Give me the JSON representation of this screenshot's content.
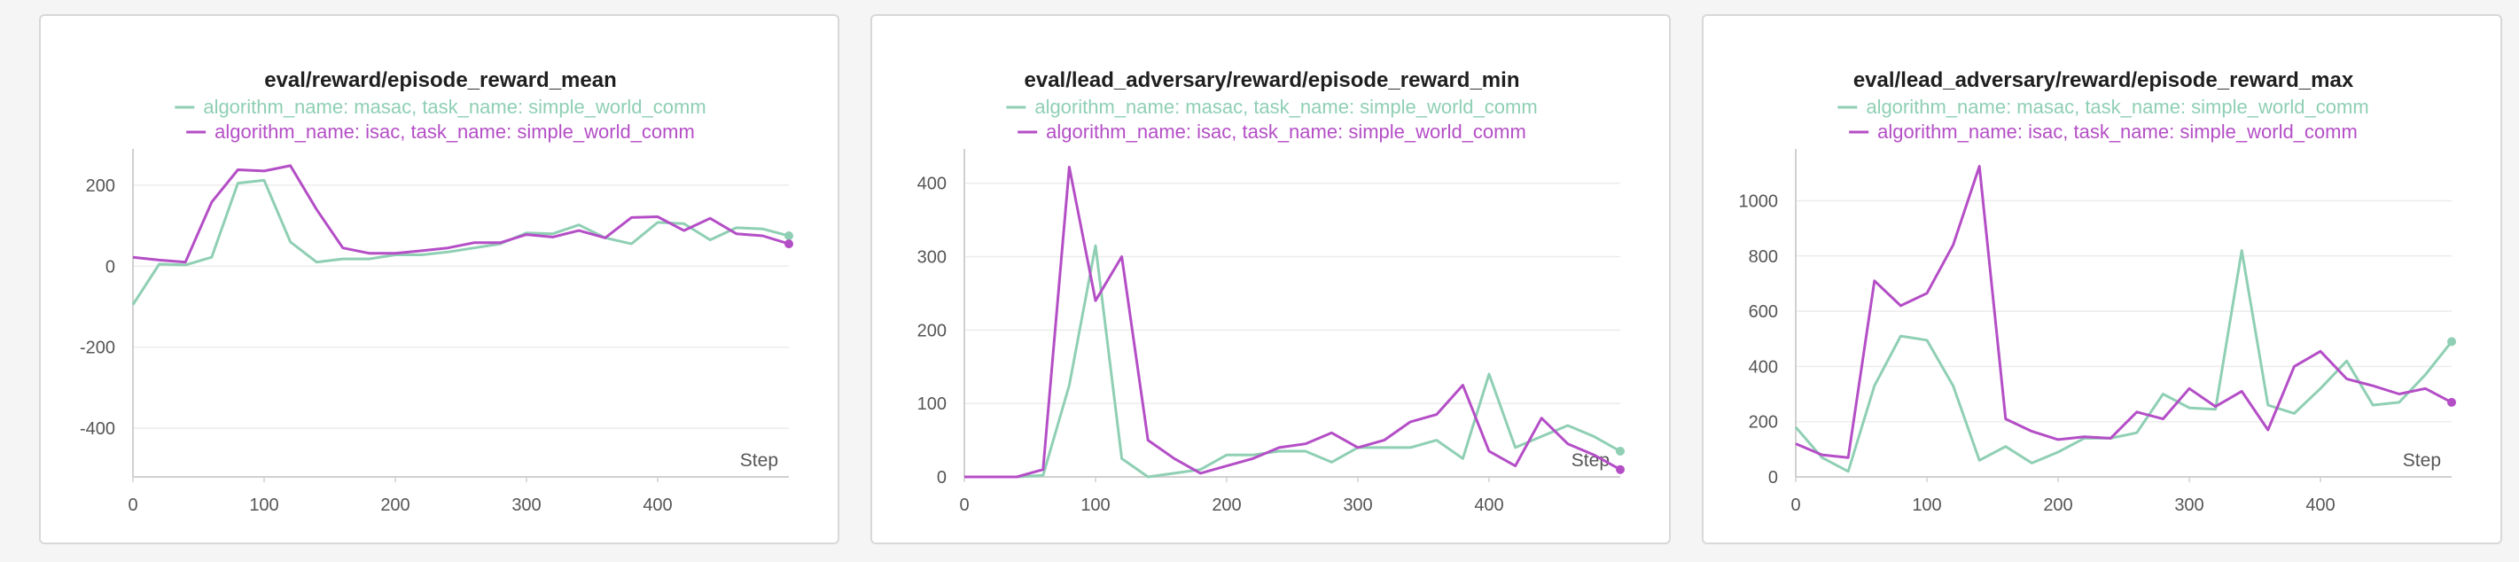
{
  "chart_data": [
    {
      "type": "line",
      "title": "eval/reward/episode_reward_mean",
      "xlabel": "Step",
      "ylabel": "",
      "xlim": [
        0,
        500
      ],
      "ylim": [
        -520,
        250
      ],
      "xticks": [
        0,
        100,
        200,
        300,
        400
      ],
      "yticks": [
        -400,
        -200,
        0,
        200
      ],
      "grid": true,
      "legend": "top-center",
      "series": [
        {
          "name": "algorithm_name: masac, task_name: simple_world_comm",
          "color": "#8fcfb4",
          "x": [
            0,
            20,
            40,
            60,
            80,
            100,
            120,
            140,
            160,
            180,
            200,
            220,
            240,
            260,
            280,
            300,
            320,
            340,
            360,
            380,
            400,
            420,
            440,
            460,
            480,
            500
          ],
          "y": [
            -95,
            5,
            3,
            22,
            205,
            212,
            60,
            10,
            18,
            18,
            28,
            28,
            35,
            45,
            55,
            82,
            80,
            102,
            70,
            55,
            108,
            105,
            65,
            95,
            92,
            75
          ]
        },
        {
          "name": "algorithm_name: isac, task_name: simple_world_comm",
          "color": "#b44ec6",
          "x": [
            0,
            20,
            40,
            60,
            80,
            100,
            120,
            140,
            160,
            180,
            200,
            220,
            240,
            260,
            280,
            300,
            320,
            340,
            360,
            380,
            400,
            420,
            440,
            460,
            480,
            500
          ],
          "y": [
            22,
            15,
            10,
            158,
            238,
            235,
            248,
            140,
            45,
            32,
            32,
            38,
            45,
            58,
            58,
            78,
            72,
            88,
            70,
            120,
            122,
            88,
            118,
            80,
            75,
            55
          ]
        }
      ]
    },
    {
      "type": "line",
      "title": "eval/lead_adversary/reward/episode_reward_min",
      "xlabel": "Step",
      "ylabel": "",
      "xlim": [
        0,
        500
      ],
      "ylim": [
        0,
        425
      ],
      "xticks": [
        0,
        100,
        200,
        300,
        400
      ],
      "yticks": [
        0,
        100,
        200,
        300,
        400
      ],
      "grid": true,
      "legend": "top-center",
      "series": [
        {
          "name": "algorithm_name: masac, task_name: simple_world_comm",
          "color": "#8fcfb4",
          "x": [
            0,
            20,
            40,
            60,
            80,
            100,
            120,
            140,
            160,
            180,
            200,
            220,
            240,
            260,
            280,
            300,
            320,
            340,
            360,
            380,
            400,
            420,
            440,
            460,
            480,
            500
          ],
          "y": [
            0,
            0,
            0,
            2,
            125,
            315,
            25,
            0,
            5,
            10,
            30,
            30,
            35,
            35,
            20,
            40,
            40,
            40,
            50,
            25,
            140,
            40,
            55,
            70,
            55,
            35
          ]
        },
        {
          "name": "algorithm_name: isac, task_name: simple_world_comm",
          "color": "#b44ec6",
          "x": [
            0,
            20,
            40,
            60,
            80,
            100,
            120,
            140,
            160,
            180,
            200,
            220,
            240,
            260,
            280,
            300,
            320,
            340,
            360,
            380,
            400,
            420,
            440,
            460,
            480,
            500
          ],
          "y": [
            0,
            0,
            0,
            10,
            422,
            240,
            300,
            50,
            25,
            5,
            15,
            25,
            40,
            45,
            60,
            40,
            50,
            75,
            85,
            125,
            35,
            15,
            80,
            45,
            30,
            10
          ]
        }
      ]
    },
    {
      "type": "line",
      "title": "eval/lead_adversary/reward/episode_reward_max",
      "xlabel": "Step",
      "ylabel": "",
      "xlim": [
        0,
        500
      ],
      "ylim": [
        0,
        1130
      ],
      "xticks": [
        0,
        100,
        200,
        300,
        400
      ],
      "yticks": [
        0,
        200,
        400,
        600,
        800,
        1000
      ],
      "grid": true,
      "legend": "top-center",
      "series": [
        {
          "name": "algorithm_name: masac, task_name: simple_world_comm",
          "color": "#8fcfb4",
          "x": [
            0,
            20,
            40,
            60,
            80,
            100,
            120,
            140,
            160,
            180,
            200,
            220,
            240,
            260,
            280,
            300,
            320,
            340,
            360,
            380,
            400,
            420,
            440,
            460,
            480,
            500
          ],
          "y": [
            180,
            70,
            20,
            330,
            510,
            495,
            330,
            60,
            110,
            50,
            90,
            140,
            140,
            160,
            300,
            250,
            245,
            820,
            260,
            230,
            320,
            420,
            260,
            270,
            370,
            490
          ]
        },
        {
          "name": "algorithm_name: isac, task_name: simple_world_comm",
          "color": "#b44ec6",
          "x": [
            0,
            20,
            40,
            60,
            80,
            100,
            120,
            140,
            160,
            180,
            200,
            220,
            240,
            260,
            280,
            300,
            320,
            340,
            360,
            380,
            400,
            420,
            440,
            460,
            480,
            500
          ],
          "y": [
            120,
            80,
            70,
            710,
            620,
            665,
            840,
            1125,
            210,
            165,
            135,
            145,
            140,
            235,
            210,
            320,
            255,
            310,
            170,
            400,
            455,
            355,
            330,
            300,
            320,
            270
          ]
        }
      ]
    }
  ]
}
